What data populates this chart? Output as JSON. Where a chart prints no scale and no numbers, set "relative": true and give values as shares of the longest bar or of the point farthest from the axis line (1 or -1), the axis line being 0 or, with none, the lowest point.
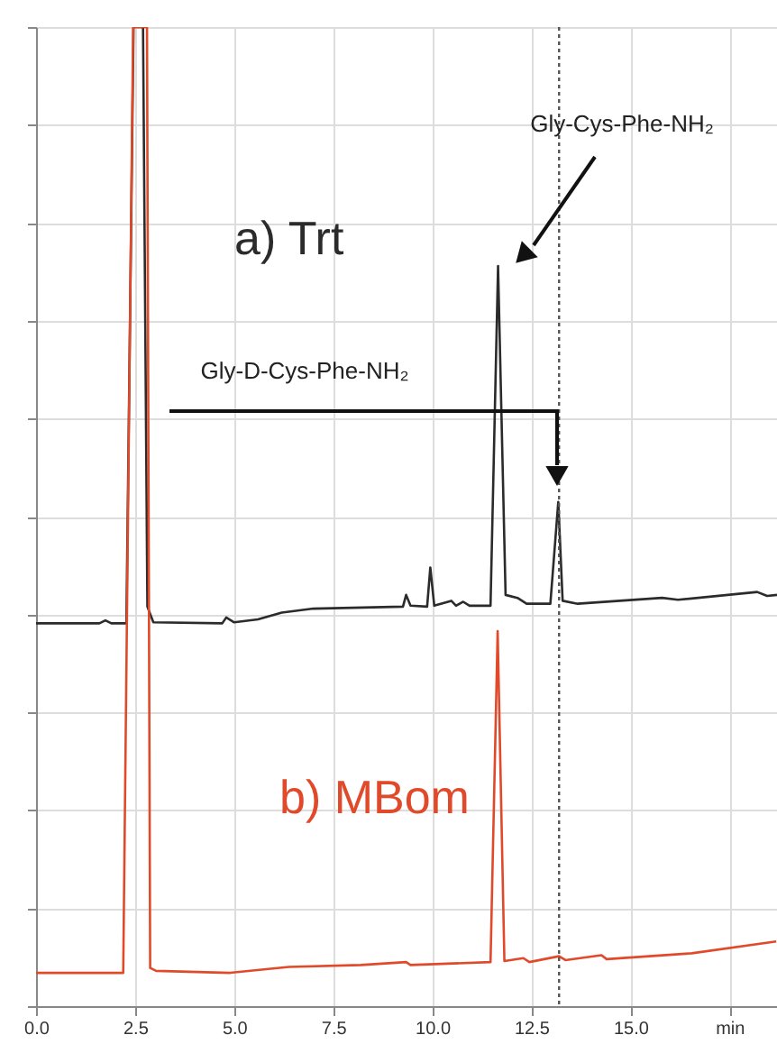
{
  "chart_data": {
    "type": "line",
    "relative": true,
    "legend": false,
    "grid": true,
    "marker": "none",
    "line_style": "solid",
    "xlim": [
      0,
      18.7
    ],
    "xticks": [
      {
        "value": 0,
        "label": "0.0"
      },
      2.5,
      {
        "value": 5,
        "label": "5.0"
      },
      7.5,
      {
        "value": 10,
        "label": "10.0"
      },
      12.5,
      {
        "value": 15,
        "label": "15.0"
      },
      {
        "value": 17.5,
        "label": "min"
      }
    ],
    "tick_labels": "x",
    "series": [
      {
        "name": "a) Trt",
        "color": "#2b2b2b",
        "x": [
          0,
          1.6,
          1.75,
          1.9,
          2.28,
          2.46,
          2.7,
          2.81,
          2.96,
          4.7,
          4.8,
          5.0,
          5.6,
          6.2,
          7.0,
          9.26,
          9.34,
          9.45,
          9.87,
          9.95,
          10.05,
          10.48,
          10.6,
          10.78,
          10.94,
          11.47,
          11.66,
          11.85,
          12.15,
          12.38,
          12.98,
          13.18,
          13.29,
          13.67,
          15.8,
          16.2,
          18.2,
          18.45,
          18.7
        ],
        "values": [
          0.391,
          0.391,
          0.394,
          0.391,
          0.391,
          1.0,
          1.0,
          0.408,
          0.392,
          0.391,
          0.397,
          0.392,
          0.395,
          0.402,
          0.406,
          0.408,
          0.42,
          0.409,
          0.408,
          0.448,
          0.409,
          0.414,
          0.409,
          0.413,
          0.409,
          0.409,
          0.756,
          0.42,
          0.417,
          0.411,
          0.411,
          0.515,
          0.414,
          0.411,
          0.417,
          0.415,
          0.423,
          0.419,
          0.42
        ]
      },
      {
        "name": "b) MBom",
        "color": "#e04a2a",
        "x": [
          0,
          2.2,
          2.45,
          2.8,
          2.88,
          3.03,
          4.9,
          6.38,
          8.2,
          9.34,
          9.45,
          11.47,
          11.65,
          11.82,
          12.3,
          12.45,
          13.2,
          13.36,
          14.27,
          14.4,
          16.55,
          18.68
        ],
        "values": [
          0.034,
          0.034,
          1.0,
          1.0,
          0.039,
          0.036,
          0.034,
          0.04,
          0.042,
          0.045,
          0.042,
          0.045,
          0.383,
          0.046,
          0.049,
          0.045,
          0.051,
          0.047,
          0.052,
          0.048,
          0.054,
          0.066
        ]
      }
    ],
    "ref_lines": [
      {
        "axis": "x",
        "value": 13.2,
        "line_style": "dotted",
        "color": "#555555"
      }
    ],
    "annotations": [
      "Gly-Cys-Phe-NH₂",
      "Gly-D-Cys-Phe-NH₂"
    ]
  }
}
